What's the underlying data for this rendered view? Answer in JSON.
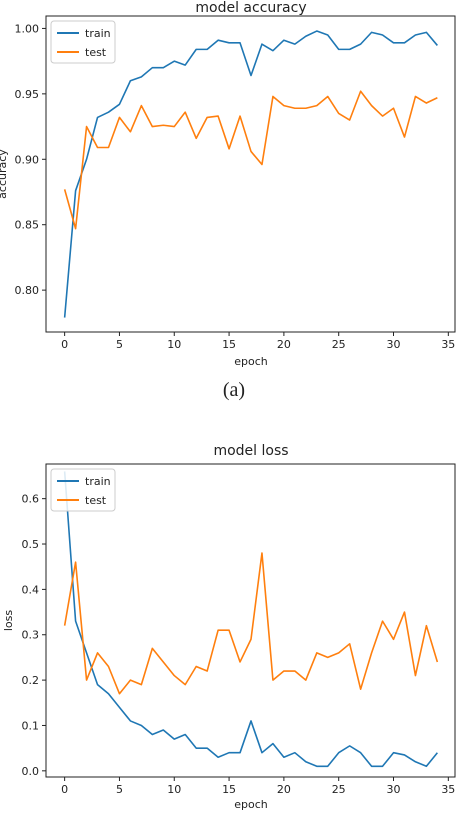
{
  "captions": {
    "top": "(a)"
  },
  "colors": {
    "train": "#1f77b4",
    "test": "#ff7f0e",
    "axis": "#222222"
  },
  "chart_data": [
    {
      "type": "line",
      "title": "model accuracy",
      "xlabel": "epoch",
      "ylabel": "accuracy",
      "xlim": [
        -1.7,
        35.7
      ],
      "ylim": [
        0.768,
        1.0095
      ],
      "xticks": [
        0,
        5,
        10,
        15,
        20,
        25,
        30,
        35
      ],
      "yticks": [
        0.8,
        0.85,
        0.9,
        0.95,
        1.0
      ],
      "ytick_labels": [
        "0.80",
        "0.85",
        "0.90",
        "0.95",
        "1.00"
      ],
      "legend_position": "top-left",
      "x": [
        0,
        1,
        2,
        3,
        4,
        5,
        6,
        7,
        8,
        9,
        10,
        11,
        12,
        13,
        14,
        15,
        16,
        17,
        18,
        19,
        20,
        21,
        22,
        23,
        24,
        25,
        26,
        27,
        28,
        29,
        30,
        31,
        32,
        33,
        34
      ],
      "series": [
        {
          "name": "train",
          "values": [
            0.779,
            0.876,
            0.9,
            0.932,
            0.936,
            0.942,
            0.96,
            0.963,
            0.97,
            0.97,
            0.975,
            0.972,
            0.984,
            0.984,
            0.991,
            0.989,
            0.989,
            0.964,
            0.988,
            0.983,
            0.991,
            0.988,
            0.994,
            0.998,
            0.995,
            0.984,
            0.984,
            0.988,
            0.997,
            0.995,
            0.989,
            0.989,
            0.995,
            0.997,
            0.987
          ]
        },
        {
          "name": "test",
          "values": [
            0.877,
            0.847,
            0.925,
            0.909,
            0.909,
            0.932,
            0.921,
            0.941,
            0.925,
            0.926,
            0.925,
            0.936,
            0.916,
            0.932,
            0.933,
            0.908,
            0.933,
            0.906,
            0.896,
            0.948,
            0.941,
            0.939,
            0.939,
            0.941,
            0.948,
            0.935,
            0.93,
            0.952,
            0.941,
            0.933,
            0.939,
            0.917,
            0.948,
            0.943,
            0.947
          ]
        }
      ]
    },
    {
      "type": "line",
      "title": "model loss",
      "xlabel": "epoch",
      "ylabel": "loss",
      "xlim": [
        -1.7,
        35.7
      ],
      "ylim": [
        -0.0136,
        0.6764
      ],
      "xticks": [
        0,
        5,
        10,
        15,
        20,
        25,
        30,
        35
      ],
      "yticks": [
        0.0,
        0.1,
        0.2,
        0.3,
        0.4,
        0.5,
        0.6
      ],
      "ytick_labels": [
        "0.0",
        "0.1",
        "0.2",
        "0.3",
        "0.4",
        "0.5",
        "0.6"
      ],
      "legend_position": "top-left",
      "x": [
        0,
        1,
        2,
        3,
        4,
        5,
        6,
        7,
        8,
        9,
        10,
        11,
        12,
        13,
        14,
        15,
        16,
        17,
        18,
        19,
        20,
        21,
        22,
        23,
        24,
        25,
        26,
        27,
        28,
        29,
        30,
        31,
        32,
        33,
        34
      ],
      "series": [
        {
          "name": "train",
          "values": [
            0.66,
            0.33,
            0.26,
            0.19,
            0.17,
            0.14,
            0.11,
            0.1,
            0.08,
            0.09,
            0.07,
            0.08,
            0.05,
            0.05,
            0.03,
            0.04,
            0.04,
            0.11,
            0.04,
            0.06,
            0.03,
            0.04,
            0.02,
            0.01,
            0.01,
            0.04,
            0.055,
            0.04,
            0.01,
            0.01,
            0.04,
            0.035,
            0.02,
            0.01,
            0.04
          ]
        },
        {
          "name": "test",
          "values": [
            0.32,
            0.46,
            0.2,
            0.26,
            0.23,
            0.17,
            0.2,
            0.19,
            0.27,
            0.24,
            0.21,
            0.19,
            0.23,
            0.22,
            0.31,
            0.31,
            0.24,
            0.29,
            0.48,
            0.2,
            0.22,
            0.22,
            0.2,
            0.26,
            0.25,
            0.26,
            0.28,
            0.18,
            0.26,
            0.33,
            0.29,
            0.35,
            0.21,
            0.32,
            0.24
          ]
        }
      ]
    }
  ]
}
